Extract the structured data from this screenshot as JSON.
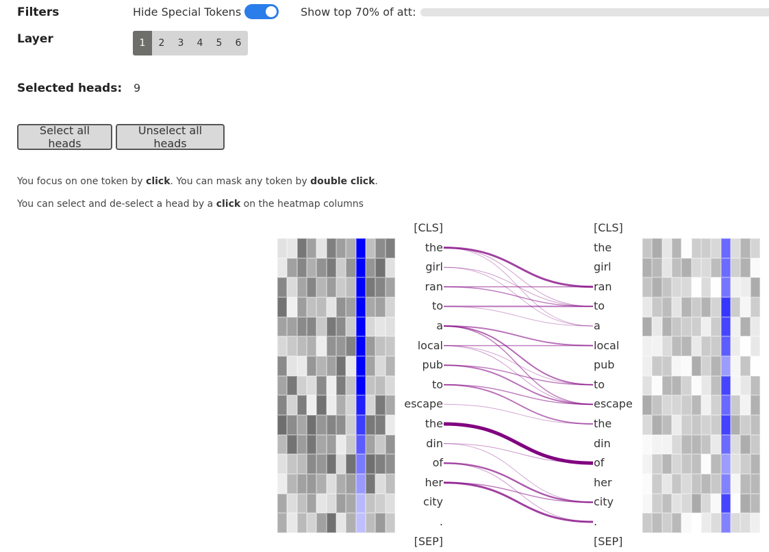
{
  "filters": {
    "label": "Filters",
    "hide_special_label": "Hide Special Tokens",
    "hide_special_on": true,
    "show_top_label": "Show top 70% of att:",
    "show_top_value_percent": 70
  },
  "layer": {
    "label": "Layer",
    "options": [
      "1",
      "2",
      "3",
      "4",
      "5",
      "6"
    ],
    "selected": "1"
  },
  "selected_heads": {
    "label": "Selected heads:",
    "value": "9"
  },
  "buttons": {
    "select_all": "Select all heads",
    "unselect_all": "Unselect all heads"
  },
  "help": {
    "line1_a": "You focus on one token by ",
    "line1_b": "click",
    "line1_c": ". You can mask any token by ",
    "line1_d": "double click",
    "line1_e": ".",
    "line2_a": "You can select and de-select a head by a ",
    "line2_b": "click",
    "line2_c": " on the heatmap columns"
  },
  "tokens": [
    "[CLS]",
    "the",
    "girl",
    "ran",
    "to",
    "a",
    "local",
    "pub",
    "to",
    "escape",
    "the",
    "din",
    "of",
    "her",
    "city",
    ".",
    "[SEP]"
  ],
  "attention_color": "#800080",
  "highlight_color": "#0000ff"
}
